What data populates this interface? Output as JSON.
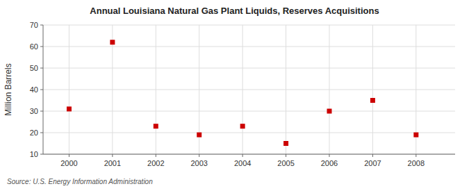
{
  "chart_data": {
    "type": "scatter",
    "title": "Annual Louisiana Natural Gas Plant Liquids, Reserves Acquisitions",
    "y_label": "Million Barrels",
    "annotations": [
      "Source: U.S. Energy Information Administration"
    ],
    "x": [
      2000,
      2001,
      2002,
      2003,
      2004,
      2005,
      2006,
      2007,
      2008
    ],
    "values": [
      31,
      62,
      23,
      19,
      23,
      15,
      30,
      35,
      19
    ],
    "color": "#cc0000",
    "marker": "square",
    "xlim": [
      1999.4,
      2008.9
    ],
    "ylim": [
      10,
      70
    ],
    "xticks": [
      2000,
      2001,
      2002,
      2003,
      2004,
      2005,
      2006,
      2007,
      2008
    ],
    "yticks": [
      10,
      20,
      30,
      40,
      50,
      60,
      70
    ],
    "grid": true
  }
}
